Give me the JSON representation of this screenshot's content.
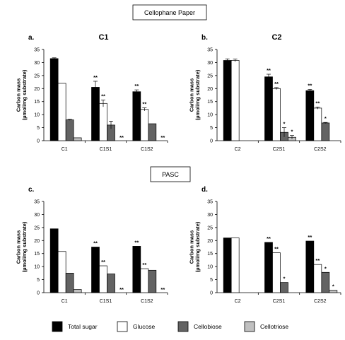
{
  "section_labels": {
    "cellophane": "Cellophane Paper",
    "pasc": "PASC"
  },
  "colors": {
    "Total sugar": "#000000",
    "Glucose": "#ffffff",
    "Cellobiose": "#636363",
    "Cellotriose": "#c0c0c0"
  },
  "legend": [
    "Total sugar",
    "Glucose",
    "Cellobiose",
    "Cellotriose"
  ],
  "chart_data": [
    {
      "type": "bar",
      "panel": "a.",
      "title": "C1",
      "ylabel": "Carbon mass (µmol/mg substrate)",
      "ylim": [
        0,
        35
      ],
      "yticks": [
        0,
        5,
        10,
        15,
        20,
        25,
        30,
        35
      ],
      "categories": [
        "C1",
        "C1S1",
        "C1S2"
      ],
      "series": [
        {
          "name": "Total sugar",
          "values": [
            31.5,
            20.5,
            18.8
          ],
          "errors": [
            0.3,
            2.3,
            0.7
          ],
          "stars": [
            "",
            "**",
            "**"
          ]
        },
        {
          "name": "Glucose",
          "values": [
            22,
            14.3,
            12
          ],
          "errors": [
            0,
            1.3,
            0.6
          ],
          "stars": [
            "",
            "**",
            "**"
          ]
        },
        {
          "name": "Cellobiose",
          "values": [
            8,
            6,
            6.5
          ],
          "errors": [
            0.2,
            1.5,
            0
          ],
          "stars": [
            "",
            "",
            ""
          ]
        },
        {
          "name": "Cellotriose",
          "values": [
            1.1,
            0,
            0
          ],
          "errors": [
            0,
            0,
            0
          ],
          "stars": [
            "",
            "**",
            "**"
          ]
        }
      ]
    },
    {
      "type": "bar",
      "panel": "b.",
      "title": "C2",
      "ylabel": "Carbon mass (µmol/mg substrate)",
      "ylim": [
        0,
        35
      ],
      "yticks": [
        0,
        5,
        10,
        15,
        20,
        25,
        30,
        35
      ],
      "categories": [
        "C2",
        "C2S1",
        "C2S2"
      ],
      "series": [
        {
          "name": "Total sugar",
          "values": [
            30.8,
            24.5,
            19.2
          ],
          "errors": [
            0.6,
            1.0,
            0.5
          ],
          "stars": [
            "",
            "**",
            "**"
          ]
        },
        {
          "name": "Glucose",
          "values": [
            30.8,
            20,
            12.5
          ],
          "errors": [
            0.5,
            0.4,
            0.4
          ],
          "stars": [
            "",
            "**",
            "**"
          ]
        },
        {
          "name": "Cellobiose",
          "values": [
            0,
            3.2,
            6.8
          ],
          "errors": [
            0,
            1.8,
            0.2
          ],
          "stars": [
            "",
            "*",
            "*"
          ]
        },
        {
          "name": "Cellotriose",
          "values": [
            0,
            1.3,
            0
          ],
          "errors": [
            0,
            0.7,
            0
          ],
          "stars": [
            "",
            "*",
            ""
          ]
        }
      ]
    },
    {
      "type": "bar",
      "panel": "c.",
      "title": "",
      "ylabel": "Carbon mass (µmol/mg substrate)",
      "ylim": [
        0,
        35
      ],
      "yticks": [
        0,
        5,
        10,
        15,
        20,
        25,
        30,
        35
      ],
      "categories": [
        "C1",
        "C1S1",
        "C1S2"
      ],
      "series": [
        {
          "name": "Total sugar",
          "values": [
            24.5,
            17.5,
            17.8
          ],
          "errors": [
            0,
            0,
            0
          ],
          "stars": [
            "",
            "**",
            "**"
          ]
        },
        {
          "name": "Glucose",
          "values": [
            15.8,
            10.3,
            9.2
          ],
          "errors": [
            0,
            0,
            0
          ],
          "stars": [
            "",
            "**",
            "**"
          ]
        },
        {
          "name": "Cellobiose",
          "values": [
            7.5,
            7.2,
            8.6
          ],
          "errors": [
            0,
            0,
            0
          ],
          "stars": [
            "",
            "",
            ""
          ]
        },
        {
          "name": "Cellotriose",
          "values": [
            1.2,
            0,
            0
          ],
          "errors": [
            0,
            0,
            0
          ],
          "stars": [
            "",
            "**",
            "**"
          ]
        }
      ]
    },
    {
      "type": "bar",
      "panel": "d.",
      "title": "",
      "ylabel": "Carbon mass (µmol/mg substrate)",
      "ylim": [
        0,
        35
      ],
      "yticks": [
        0,
        5,
        10,
        15,
        20,
        25,
        30,
        35
      ],
      "categories": [
        "C2",
        "C2S1",
        "C2S2"
      ],
      "series": [
        {
          "name": "Total sugar",
          "values": [
            21,
            19.3,
            19.8
          ],
          "errors": [
            0,
            0,
            0
          ],
          "stars": [
            "",
            "**",
            "**"
          ]
        },
        {
          "name": "Glucose",
          "values": [
            21,
            15.3,
            10.8
          ],
          "errors": [
            0,
            0,
            0
          ],
          "stars": [
            "",
            "**",
            "**"
          ]
        },
        {
          "name": "Cellobiose",
          "values": [
            0,
            3.9,
            7.8
          ],
          "errors": [
            0,
            0,
            0
          ],
          "stars": [
            "",
            "*",
            "*"
          ]
        },
        {
          "name": "Cellotriose",
          "values": [
            0,
            0,
            0.9
          ],
          "errors": [
            0,
            0,
            0
          ],
          "stars": [
            "",
            "",
            "*"
          ]
        }
      ]
    }
  ]
}
